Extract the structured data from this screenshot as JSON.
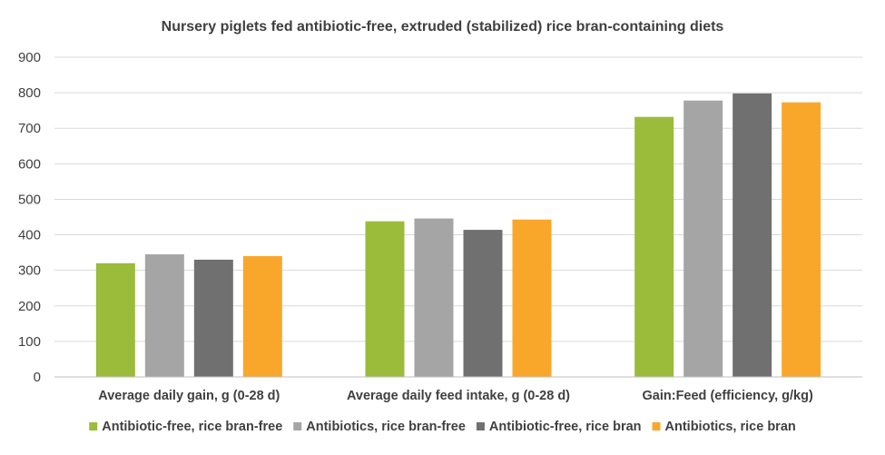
{
  "chart_data": {
    "type": "bar",
    "title": "Nursery piglets fed antibiotic-free, extruded (stabilized) rice bran-containing diets",
    "xlabel": "",
    "ylabel": "",
    "ylim": [
      0,
      900
    ],
    "yticks": [
      0,
      100,
      200,
      300,
      400,
      500,
      600,
      700,
      800,
      900
    ],
    "grid": true,
    "legend_position": "bottom",
    "categories": [
      "Average daily gain, g (0-28 d)",
      "Average daily feed intake, g (0-28 d)",
      "Gain:Feed (efficiency, g/kg)"
    ],
    "series": [
      {
        "name": "Antibiotic-free, rice bran-free",
        "color": "#9BBB3B",
        "values": [
          320,
          438,
          732
        ]
      },
      {
        "name": "Antibiotics, rice bran-free",
        "color": "#A5A5A5",
        "values": [
          345,
          446,
          778
        ]
      },
      {
        "name": "Antibiotic-free, rice bran",
        "color": "#707070",
        "values": [
          330,
          414,
          798
        ]
      },
      {
        "name": "Antibiotics, rice bran",
        "color": "#F9A72B",
        "values": [
          340,
          443,
          773
        ]
      }
    ]
  }
}
